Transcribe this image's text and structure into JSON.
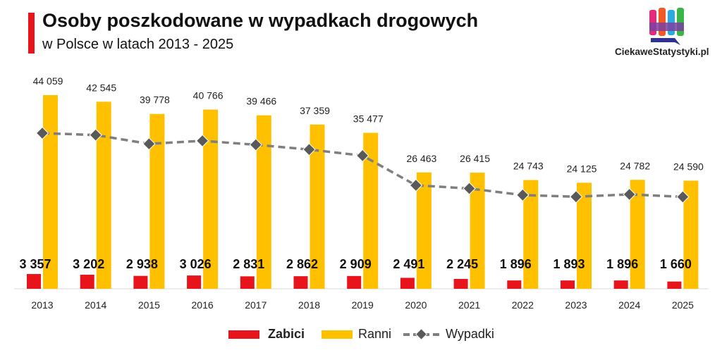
{
  "header": {
    "title": "Osoby poszkodowane w wypadkach drogowych",
    "subtitle": "w Polsce w latach 2013 - 2025"
  },
  "brand": {
    "name": "CiekaweStatystyki.pl"
  },
  "colors": {
    "accent": "#e8141b",
    "zabici": "#e8141b",
    "ranni": "#ffc000",
    "wypadki": "#7f7f7f",
    "marker": "#595959"
  },
  "legend": {
    "zabici": "Zabici",
    "ranni": "Ranni",
    "wypadki": "Wypadki"
  },
  "chart_data": {
    "type": "bar",
    "title": "Osoby poszkodowane w wypadkach drogowych",
    "subtitle": "w Polsce w latach 2013 - 2025",
    "categories": [
      "2013",
      "2014",
      "2015",
      "2016",
      "2017",
      "2018",
      "2019",
      "2020",
      "2021",
      "2022",
      "2023",
      "2024",
      "2025"
    ],
    "series": [
      {
        "name": "Zabici",
        "kind": "bar",
        "values": [
          3357,
          3202,
          2938,
          3026,
          2831,
          2862,
          2909,
          2491,
          2245,
          1896,
          1893,
          1896,
          1660
        ],
        "labels": [
          "3 357",
          "3 202",
          "2 938",
          "3 026",
          "2 831",
          "2 862",
          "2 909",
          "2 491",
          "2 245",
          "1 896",
          "1 893",
          "1 896",
          "1 660"
        ]
      },
      {
        "name": "Ranni",
        "kind": "bar",
        "values": [
          44059,
          42545,
          39778,
          40766,
          39466,
          37359,
          35477,
          26463,
          26415,
          24743,
          24125,
          24782,
          24590
        ],
        "labels": [
          "44 059",
          "42 545",
          "39 778",
          "40 766",
          "39 466",
          "37 359",
          "35 477",
          "26 463",
          "26 415",
          "24 743",
          "24 125",
          "24 782",
          "24 590"
        ]
      },
      {
        "name": "Wypadki",
        "kind": "line",
        "style": "dashed",
        "marker": "diamond",
        "values": [
          35400,
          34970,
          32967,
          33664,
          32760,
          31674,
          30288,
          23540,
          22816,
          21322,
          20936,
          21472,
          20900
        ]
      }
    ],
    "ylim": [
      0,
      45000
    ],
    "xlabel": "",
    "ylabel": "",
    "grid": false,
    "legend_position": "bottom"
  }
}
